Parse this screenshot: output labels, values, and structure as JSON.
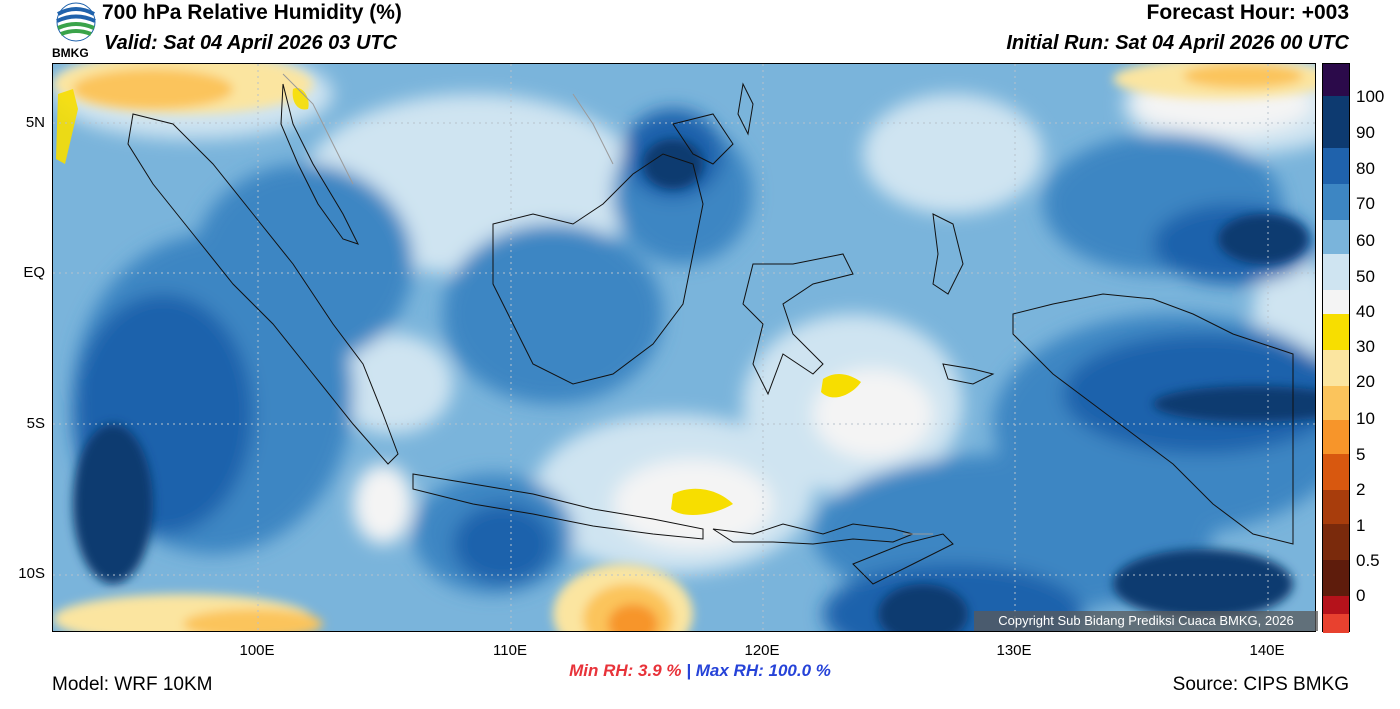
{
  "header": {
    "title": "700 hPa Relative Humidity (%)",
    "valid": "Valid: Sat 04 April 2026 03 UTC",
    "forecast_hour": "Forecast Hour: +003",
    "initial_run": "Initial Run: Sat 04 April 2026 00 UTC"
  },
  "logo": {
    "text": "BMKG"
  },
  "axes": {
    "y_labels": [
      "5N",
      "EQ",
      "5S",
      "10S"
    ],
    "x_labels": [
      "100E",
      "110E",
      "120E",
      "130E",
      "140E"
    ]
  },
  "stats": {
    "min_label": "Min RH:",
    "min_value": "3.9 %",
    "separator": "|",
    "max_label": "Max RH:",
    "max_value": "100.0 %",
    "min_color": "#e8333a",
    "max_color": "#2643d8"
  },
  "footer": {
    "model": "Model: WRF 10KM",
    "source": "Source: CIPS BMKG",
    "copyright": "Copyright Sub Bidang Prediksi Cuaca BMKG, 2026"
  },
  "colorbar": {
    "labels": [
      "100",
      "90",
      "80",
      "70",
      "60",
      "50",
      "40",
      "30",
      "20",
      "10",
      "5",
      "2",
      "1",
      "0.5",
      "0"
    ],
    "colors": [
      "#2b0a4a",
      "#0d3a70",
      "#1f62ac",
      "#3d86c3",
      "#7ab4db",
      "#cfe4f1",
      "#f4f4f4",
      "#f7de00",
      "#fbe5a0",
      "#fbc45c",
      "#f7952a",
      "#d8580f",
      "#a83d0c",
      "#7a2a0c",
      "#5e1c0c",
      "#b5121b",
      "#e8412f"
    ]
  }
}
